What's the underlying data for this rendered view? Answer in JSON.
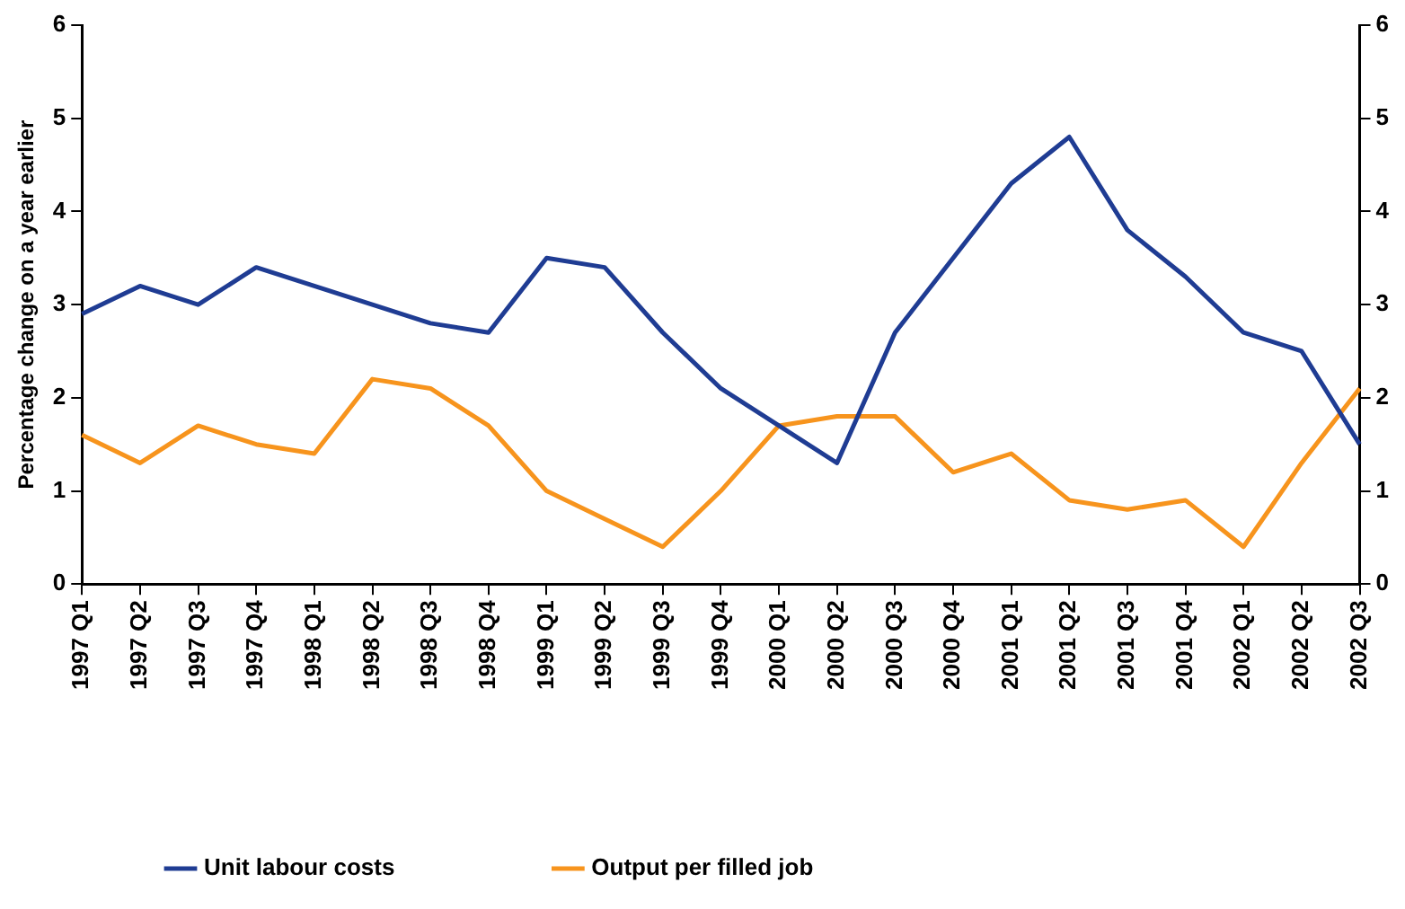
{
  "chart_data": {
    "type": "line",
    "ylabel": "Percentage change on a year earlier",
    "categories": [
      "1997 Q1",
      "1997 Q2",
      "1997 Q3",
      "1997 Q4",
      "1998 Q1",
      "1998 Q2",
      "1998 Q3",
      "1998 Q4",
      "1999 Q1",
      "1999 Q2",
      "1999 Q3",
      "1999 Q4",
      "2000 Q1",
      "2000 Q2",
      "2000 Q3",
      "2000 Q4",
      "2001 Q1",
      "2001 Q2",
      "2001 Q3",
      "2001 Q4",
      "2002 Q1",
      "2002 Q2",
      "2002 Q3"
    ],
    "series": [
      {
        "name": "Unit labour costs",
        "color": "#1f3c93",
        "values": [
          2.9,
          3.2,
          3.0,
          3.4,
          3.2,
          3.0,
          2.8,
          2.7,
          3.5,
          3.4,
          2.7,
          2.1,
          1.7,
          1.3,
          2.7,
          3.5,
          4.3,
          4.8,
          3.8,
          3.3,
          2.7,
          2.5,
          1.5
        ]
      },
      {
        "name": "Output per filled job",
        "color": "#f7941d",
        "values": [
          1.6,
          1.3,
          1.7,
          1.5,
          1.4,
          2.2,
          2.1,
          1.7,
          1.0,
          0.7,
          0.4,
          1.0,
          1.7,
          1.8,
          1.8,
          1.2,
          1.4,
          0.9,
          0.8,
          0.9,
          0.4,
          1.3,
          2.1
        ]
      }
    ],
    "ylim": [
      0,
      6
    ],
    "yticks": [
      0,
      1,
      2,
      3,
      4,
      5,
      6
    ],
    "y2lim": [
      0,
      6
    ],
    "y2ticks": [
      0,
      1,
      2,
      3,
      4,
      5,
      6
    ],
    "grid": false,
    "legend": "bottom",
    "marker": "none",
    "line_style": "solid"
  }
}
